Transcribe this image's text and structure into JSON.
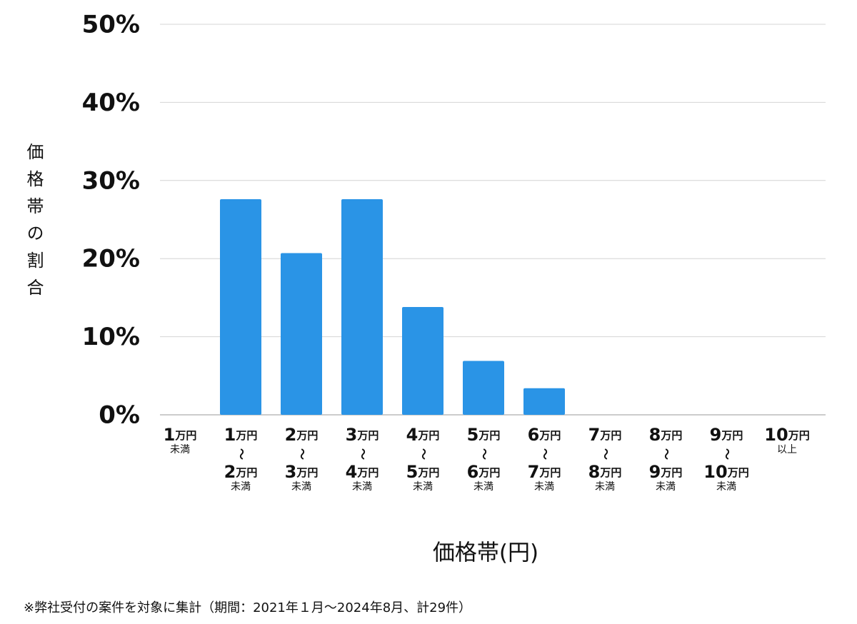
{
  "chart_data": {
    "type": "bar",
    "y_label": "価格帯の割合",
    "x_label": "価格帯(円)",
    "footnote": "※弊社受付の案件を対象に集計（期間：2021年１月～2024年8月、計29件）",
    "categories": [
      [
        "1万円",
        "未満"
      ],
      [
        "1万円",
        "〜",
        "2万円",
        "未満"
      ],
      [
        "2万円",
        "〜",
        "3万円",
        "未満"
      ],
      [
        "3万円",
        "〜",
        "4万円",
        "未満"
      ],
      [
        "4万円",
        "〜",
        "5万円",
        "未満"
      ],
      [
        "5万円",
        "〜",
        "6万円",
        "未満"
      ],
      [
        "6万円",
        "〜",
        "7万円",
        "未満"
      ],
      [
        "7万円",
        "〜",
        "8万円",
        "未満"
      ],
      [
        "8万円",
        "〜",
        "9万円",
        "未満"
      ],
      [
        "9万円",
        "〜",
        "10万円",
        "未満"
      ],
      [
        "10万円",
        "以上"
      ]
    ],
    "values": [
      0,
      27.6,
      20.7,
      27.6,
      13.8,
      6.9,
      3.4,
      0,
      0,
      0,
      0
    ],
    "color": "#2a94e6",
    "ylim": [
      0,
      50
    ],
    "yticks": [
      {
        "value": 0,
        "label": "0%"
      },
      {
        "value": 10,
        "label": "10%"
      },
      {
        "value": 20,
        "label": "20%"
      },
      {
        "value": 30,
        "label": "30%"
      },
      {
        "value": 40,
        "label": "40%"
      },
      {
        "value": 50,
        "label": "50%"
      }
    ],
    "grid": true
  }
}
